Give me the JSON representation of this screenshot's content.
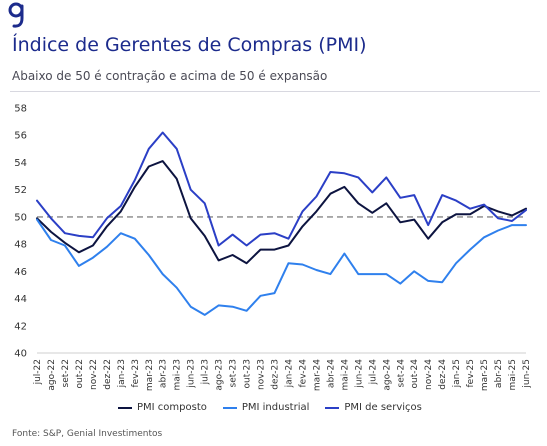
{
  "header": {
    "title": "Índice de Gerentes de Compras (PMI)",
    "subtitle": "Abaixo de 50 é contração e acima de 50 é expansão"
  },
  "colors": {
    "logo": "#1c2b8c",
    "composto": "#0d1440",
    "industrial": "#2f80ed",
    "servicos": "#2b3fc6",
    "reference": "#9a9a9a",
    "axis_text": "#333333"
  },
  "source": "Fonte: S&P, Genial Investimentos",
  "chart_data": {
    "type": "line",
    "categories": [
      "jul-22",
      "ago-22",
      "set-22",
      "out-22",
      "nov-22",
      "dez-22",
      "jan-23",
      "fev-23",
      "mar-23",
      "abr-23",
      "mai-23",
      "jun-23",
      "jul-23",
      "ago-23",
      "set-23",
      "out-23",
      "nov-23",
      "dez-23",
      "jan-24",
      "fev-24",
      "mar-24",
      "abr-24",
      "mai-24",
      "jun-24",
      "jul-24",
      "ago-24",
      "set-24",
      "out-24",
      "nov-24",
      "dez-24",
      "jan-25",
      "fev-25",
      "mar-25",
      "abr-25",
      "mai-25",
      "jun-25"
    ],
    "series": [
      {
        "name": "PMI composto",
        "values": [
          49.9,
          48.9,
          48.1,
          47.4,
          47.9,
          49.3,
          50.4,
          52.2,
          53.7,
          54.1,
          52.8,
          49.9,
          48.6,
          46.8,
          47.2,
          46.6,
          47.6,
          47.6,
          47.9,
          49.3,
          50.4,
          51.7,
          52.2,
          51.0,
          50.3,
          51.0,
          49.6,
          49.8,
          48.4,
          49.6,
          50.2,
          50.2,
          50.8,
          50.4,
          50.1,
          50.6
        ]
      },
      {
        "name": "PMI industrial",
        "values": [
          49.8,
          48.3,
          47.9,
          46.4,
          47.0,
          47.8,
          48.8,
          48.4,
          47.2,
          45.8,
          44.8,
          43.4,
          42.8,
          43.5,
          43.4,
          43.1,
          44.2,
          44.4,
          46.6,
          46.5,
          46.1,
          45.8,
          47.3,
          45.8,
          45.8,
          45.8,
          45.1,
          46.0,
          45.3,
          45.2,
          46.6,
          47.6,
          48.5,
          49.0,
          49.4,
          49.4
        ]
      },
      {
        "name": "PMI de serviços",
        "values": [
          51.2,
          49.9,
          48.8,
          48.6,
          48.5,
          49.9,
          50.8,
          52.7,
          55.0,
          56.2,
          55.0,
          52.0,
          51.0,
          47.9,
          48.7,
          47.9,
          48.7,
          48.8,
          48.4,
          50.4,
          51.5,
          53.3,
          53.2,
          52.9,
          51.8,
          52.9,
          51.4,
          51.6,
          49.4,
          51.6,
          51.2,
          50.6,
          50.9,
          49.9,
          49.7,
          50.5
        ]
      }
    ],
    "ylim": [
      40,
      58
    ],
    "yticks": [
      40,
      42,
      44,
      46,
      48,
      50,
      52,
      54,
      56,
      58
    ],
    "reference_line": 50,
    "grid": false,
    "legend_position": "bottom"
  }
}
